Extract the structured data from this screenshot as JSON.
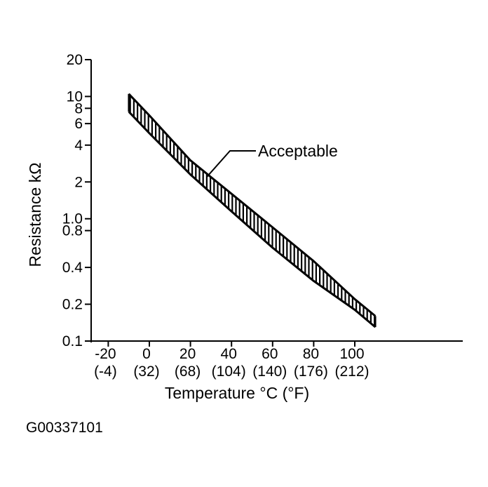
{
  "chart_data": {
    "type": "line",
    "title": "",
    "xlabel": "Temperature °C (°F)",
    "ylabel": "Resistance kΩ",
    "y_scale": "log",
    "ylim": [
      0.1,
      20
    ],
    "xlim": [
      -30,
      150
    ],
    "x_ticks": [
      {
        "value": -20,
        "label": "-20",
        "label2": "(-4)"
      },
      {
        "value": 0,
        "label": "0",
        "label2": "(32)"
      },
      {
        "value": 20,
        "label": "20",
        "label2": "(68)"
      },
      {
        "value": 40,
        "label": "40",
        "label2": "(104)"
      },
      {
        "value": 60,
        "label": "60",
        "label2": "(140)"
      },
      {
        "value": 80,
        "label": "80",
        "label2": "(176)"
      },
      {
        "value": 100,
        "label": "100",
        "label2": "(212)"
      }
    ],
    "y_ticks": [
      {
        "value": 20,
        "label": "20"
      },
      {
        "value": 10,
        "label": "10"
      },
      {
        "value": 8,
        "label": "8"
      },
      {
        "value": 6,
        "label": "6"
      },
      {
        "value": 4,
        "label": "4"
      },
      {
        "value": 2,
        "label": "2"
      },
      {
        "value": 1.0,
        "label": "1.0"
      },
      {
        "value": 0.8,
        "label": "0.8"
      },
      {
        "value": 0.4,
        "label": "0.4"
      },
      {
        "value": 0.2,
        "label": "0.2"
      },
      {
        "value": 0.1,
        "label": "0.1"
      }
    ],
    "series": [
      {
        "role": "upper",
        "x": [
          -10,
          0,
          20,
          40,
          60,
          80,
          100,
          110
        ],
        "y": [
          10.5,
          7.0,
          3.0,
          1.6,
          0.85,
          0.45,
          0.22,
          0.16
        ]
      },
      {
        "role": "lower",
        "x": [
          -10,
          0,
          20,
          40,
          60,
          80,
          100,
          110
        ],
        "y": [
          7.5,
          5.0,
          2.3,
          1.15,
          0.58,
          0.31,
          0.18,
          0.13
        ]
      }
    ],
    "band_fill": "hatched",
    "annotations": [
      {
        "text": "Acceptable",
        "x": 28,
        "y": 2.2
      }
    ],
    "grid": false,
    "legend": "none"
  },
  "figure_id": "G00337101",
  "colors": {
    "ink": "#000000",
    "background": "#ffffff"
  }
}
